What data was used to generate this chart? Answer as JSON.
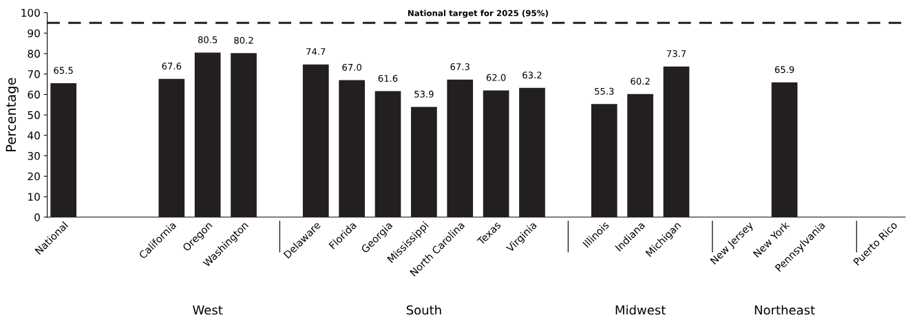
{
  "chart_data": {
    "type": "bar",
    "ylabel": "Percentage",
    "categories": [
      "National",
      null,
      null,
      "California",
      "Oregon",
      "Washington",
      null,
      "Delaware",
      "Florida",
      "Georgia",
      "Mississippi",
      "North Carolina",
      "Texas",
      "Virginia",
      null,
      "Illinois",
      "Indiana",
      "Michigan",
      null,
      "New Jersey",
      "New York",
      "Pennsylvania",
      null,
      "Puerto Rico"
    ],
    "values": [
      65.5,
      null,
      null,
      67.6,
      80.5,
      80.2,
      null,
      74.7,
      67.0,
      61.6,
      53.9,
      67.3,
      62.0,
      63.2,
      null,
      55.3,
      60.2,
      73.7,
      null,
      null,
      65.9,
      null,
      null,
      null
    ],
    "value_labels": [
      "65.5",
      null,
      null,
      "67.6",
      "80.5",
      "80.2",
      null,
      "74.7",
      "67.0",
      "61.6",
      "53.9",
      "67.3",
      "62.0",
      "63.2",
      null,
      "55.3",
      "60.2",
      "73.7",
      null,
      null,
      "65.9",
      null,
      null,
      null
    ],
    "color": "#231f20",
    "ylim": [
      0,
      100
    ],
    "yticks": [
      0,
      10,
      20,
      30,
      40,
      50,
      60,
      70,
      80,
      90,
      100
    ],
    "grid": false,
    "ref_lines": [
      {
        "axis": "y",
        "value": 95,
        "label": "National target for 2025 (95%)",
        "color": "#231f20",
        "line_style": "dashed"
      }
    ],
    "annotations": [
      "West",
      "South",
      "Midwest",
      "Northeast"
    ]
  }
}
